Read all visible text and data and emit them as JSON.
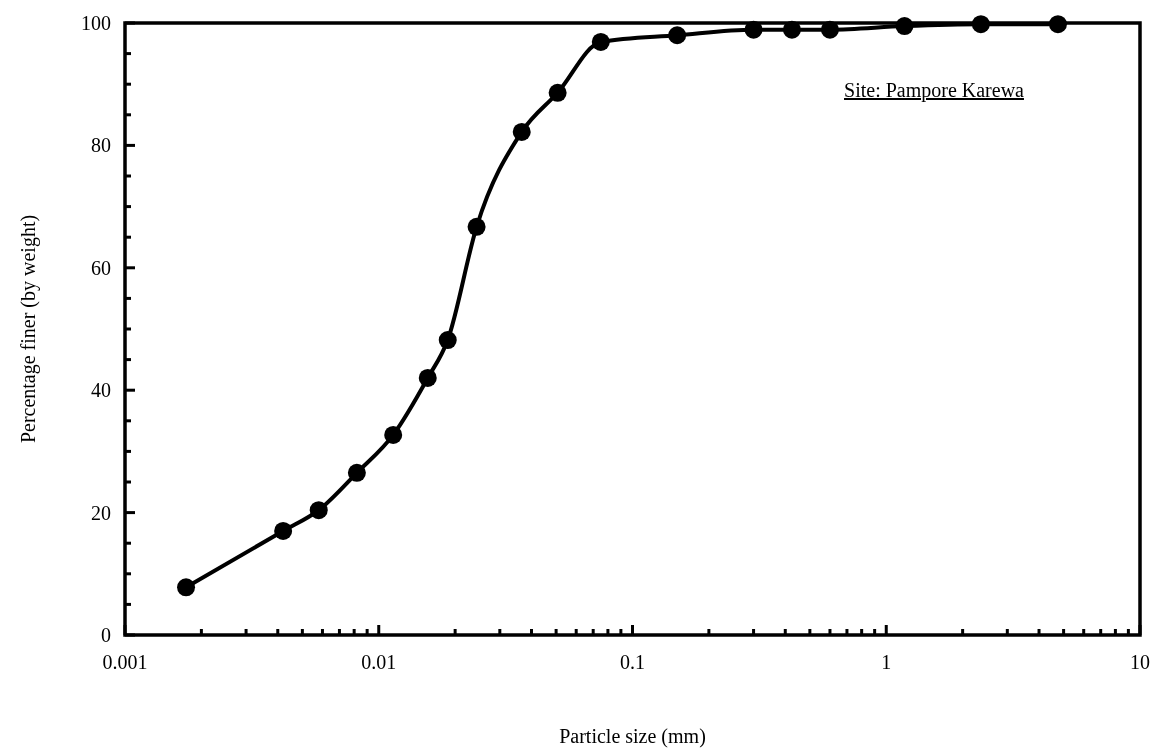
{
  "chart_data": {
    "type": "line",
    "xlabel": "Particle size (mm)",
    "ylabel": "Percentage finer (by weight)",
    "annotations": [
      "Site: Pampore Karewa"
    ],
    "log": "x",
    "x": [
      0.00174,
      0.0042,
      0.0058,
      0.0082,
      0.0114,
      0.0156,
      0.0187,
      0.0243,
      0.0366,
      0.0507,
      0.075,
      0.15,
      0.3,
      0.425,
      0.6,
      1.18,
      2.36,
      4.75
    ],
    "series": [
      {
        "color": "#000000",
        "values": [
          7.8,
          17.0,
          20.4,
          26.5,
          32.7,
          42.0,
          48.2,
          66.7,
          82.2,
          88.6,
          96.9,
          98.0,
          98.9,
          98.9,
          98.9,
          99.5,
          99.8,
          99.8
        ]
      }
    ],
    "marker": "circle",
    "line_style": "solid",
    "grid": false,
    "xlim": [
      0.001,
      10
    ],
    "ylim": [
      0,
      100
    ],
    "xticks": [
      0.001,
      {
        "value": 0.002,
        "label": null
      },
      {
        "value": 0.003,
        "label": null
      },
      {
        "value": 0.004,
        "label": null
      },
      {
        "value": 0.005,
        "label": null
      },
      {
        "value": 0.006,
        "label": null
      },
      {
        "value": 0.007,
        "label": null
      },
      {
        "value": 0.008,
        "label": null
      },
      {
        "value": 0.009,
        "label": null
      },
      0.01,
      {
        "value": 0.02,
        "label": null
      },
      {
        "value": 0.03,
        "label": null
      },
      {
        "value": 0.04,
        "label": null
      },
      {
        "value": 0.05,
        "label": null
      },
      {
        "value": 0.06,
        "label": null
      },
      {
        "value": 0.07,
        "label": null
      },
      {
        "value": 0.08,
        "label": null
      },
      {
        "value": 0.09,
        "label": null
      },
      0.1,
      {
        "value": 0.2,
        "label": null
      },
      {
        "value": 0.3,
        "label": null
      },
      {
        "value": 0.4,
        "label": null
      },
      {
        "value": 0.5,
        "label": null
      },
      {
        "value": 0.6,
        "label": null
      },
      {
        "value": 0.7,
        "label": null
      },
      {
        "value": 0.8,
        "label": null
      },
      {
        "value": 0.9,
        "label": null
      },
      1,
      {
        "value": 2,
        "label": null
      },
      {
        "value": 3,
        "label": null
      },
      {
        "value": 4,
        "label": null
      },
      {
        "value": 5,
        "label": null
      },
      {
        "value": 6,
        "label": null
      },
      {
        "value": 7,
        "label": null
      },
      {
        "value": 8,
        "label": null
      },
      {
        "value": 9,
        "label": null
      },
      10
    ],
    "yticks": [
      0,
      {
        "value": 5,
        "label": null
      },
      {
        "value": 10,
        "label": null
      },
      {
        "value": 15,
        "label": null
      },
      20,
      {
        "value": 25,
        "label": null
      },
      {
        "value": 30,
        "label": null
      },
      {
        "value": 35,
        "label": null
      },
      40,
      {
        "value": 45,
        "label": null
      },
      {
        "value": 50,
        "label": null
      },
      {
        "value": 55,
        "label": null
      },
      60,
      {
        "value": 65,
        "label": null
      },
      {
        "value": 70,
        "label": null
      },
      {
        "value": 75,
        "label": null
      },
      80,
      {
        "value": 85,
        "label": null
      },
      {
        "value": 90,
        "label": null
      },
      {
        "value": 95,
        "label": null
      },
      100
    ]
  }
}
